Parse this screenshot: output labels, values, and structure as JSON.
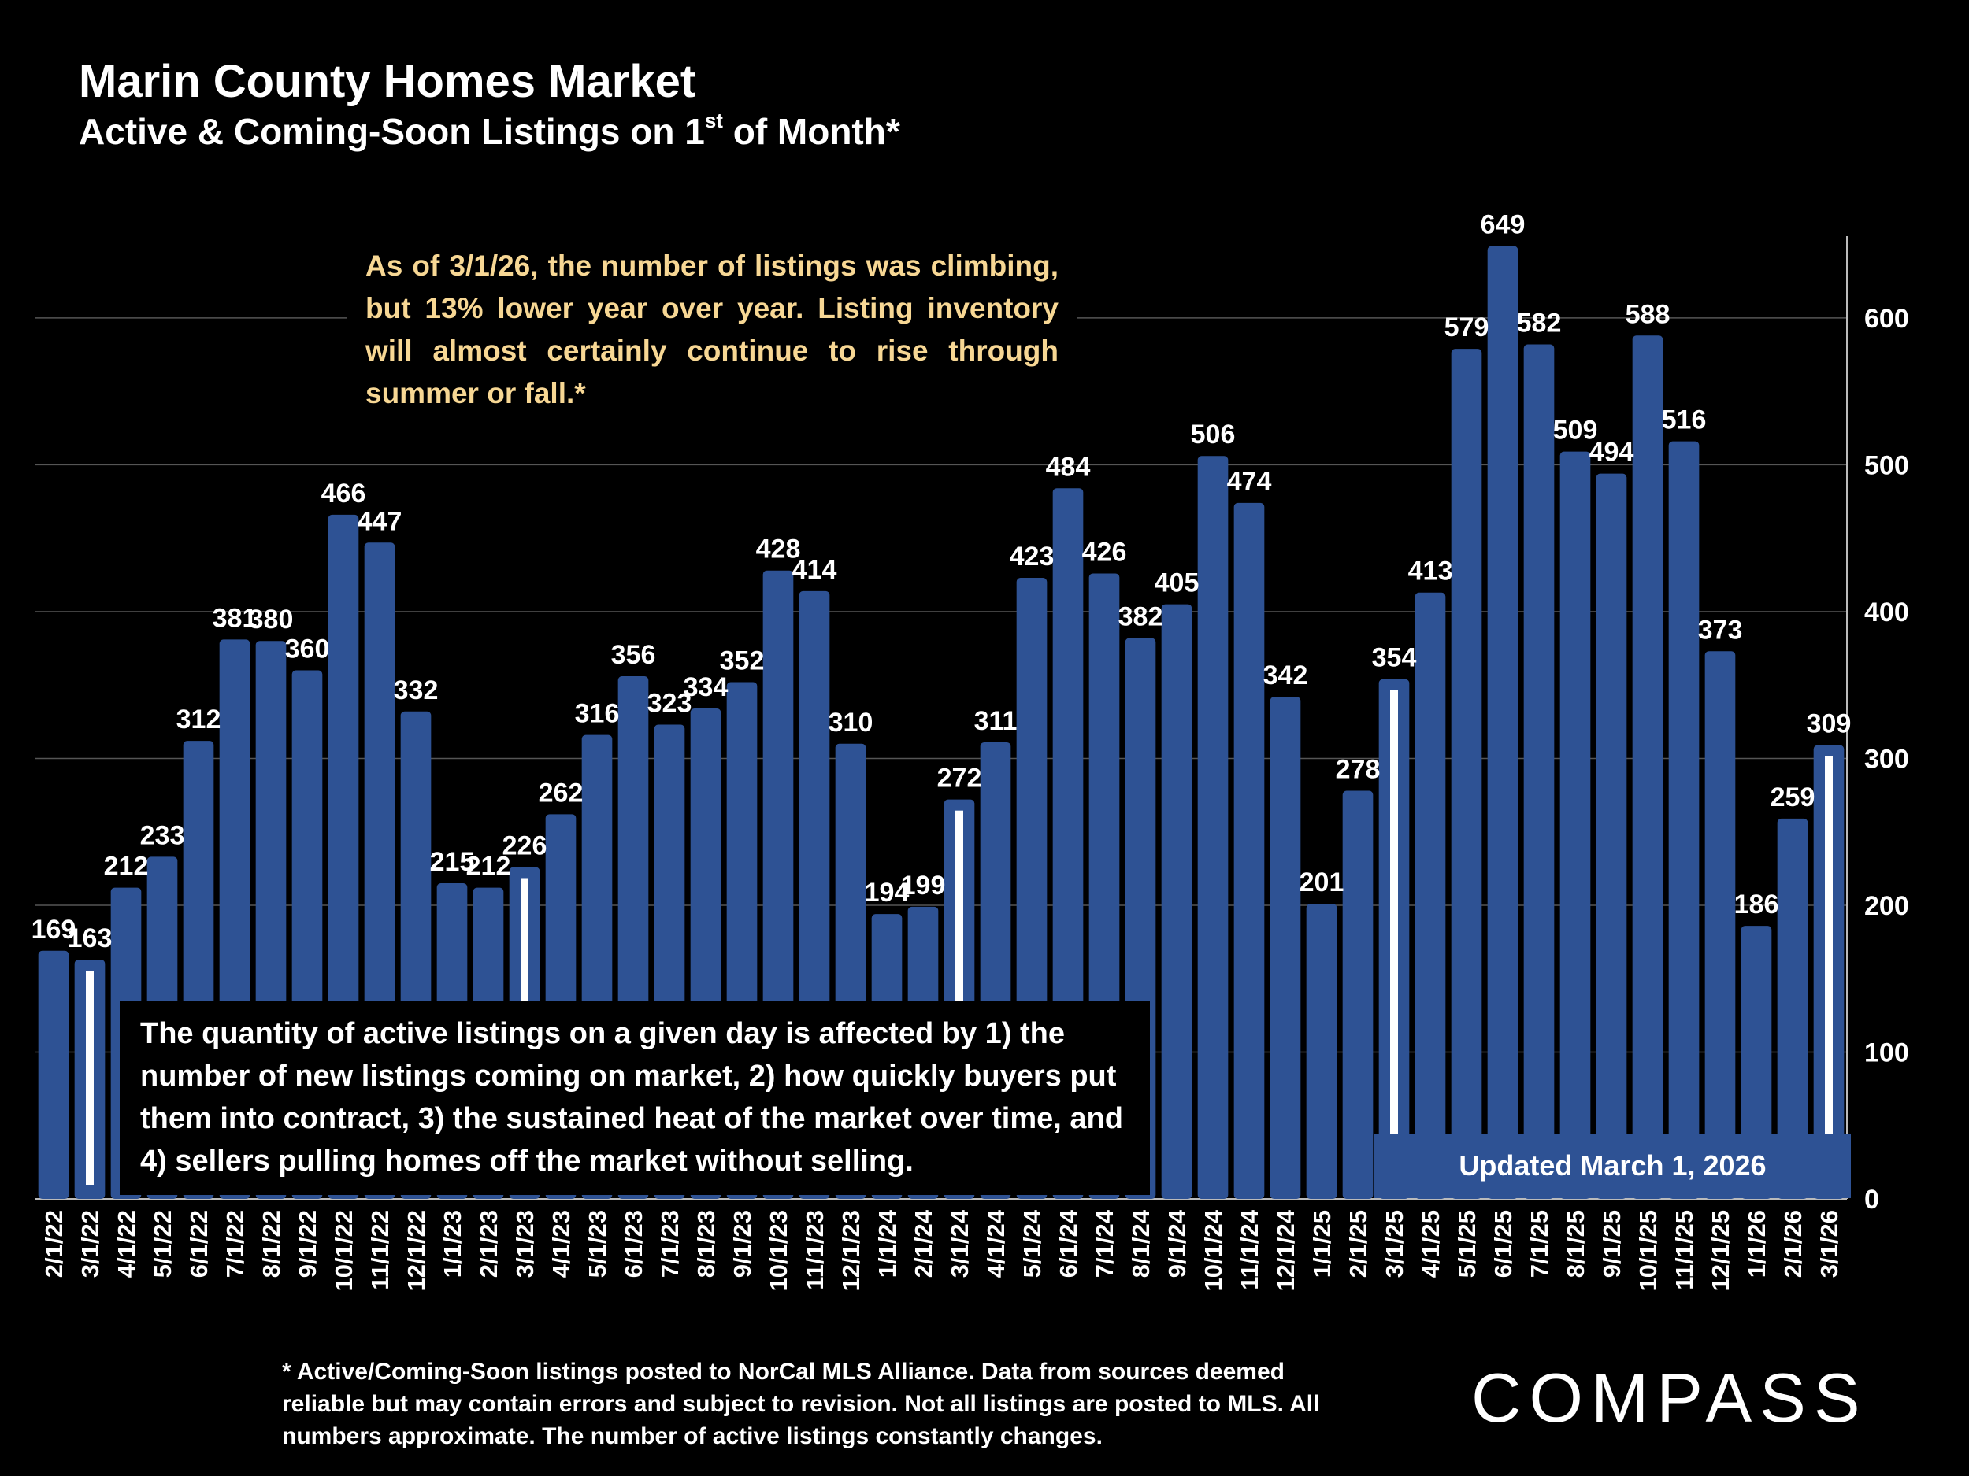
{
  "title": "Marin County Homes Market",
  "subtitle": "Active & Coming-Soon Listings on 1",
  "subtitle_sup": "st",
  "subtitle_end": " of Month*",
  "note_top": "As of 3/1/26, the number of listings was climbing, but 13% lower year over year. Listing inventory will almost certainly continue to rise through summer or fall.*",
  "note_bottom": "The quantity of active listings on a given day is affected by 1) the number of new listings coming on market, 2) how quickly buyers put them into contract, 3) the sustained heat of the market over time, and 4) sellers pulling homes off the market without selling.",
  "updated": "Updated March 1, 2026",
  "footnote": "* Active/Coming-Soon listings posted to NorCal MLS Alliance.  Data from sources deemed reliable but may contain errors and subject to revision.  Not all listings are posted to MLS. All numbers approximate. The number of active listings constantly changes.",
  "logo": "COMPASS",
  "colors": {
    "bar": "#2e5294",
    "background": "#000000",
    "note_text": "#f7d794",
    "marker": "#ffffff"
  },
  "chart_data": {
    "type": "bar",
    "title": "Marin County Homes Market",
    "subtitle": "Active & Coming-Soon Listings on 1st of Month*",
    "xlabel": "",
    "ylabel": "",
    "ylim": [
      0,
      660
    ],
    "yticks": [
      0,
      100,
      200,
      300,
      400,
      500,
      600
    ],
    "y_axis_position": "right",
    "grid": true,
    "categories": [
      "2/1/22",
      "3/1/22",
      "4/1/22",
      "5/1/22",
      "6/1/22",
      "7/1/22",
      "8/1/22",
      "9/1/22",
      "10/1/22",
      "11/1/22",
      "12/1/22",
      "1/1/23",
      "2/1/23",
      "3/1/23",
      "4/1/23",
      "5/1/23",
      "6/1/23",
      "7/1/23",
      "8/1/23",
      "9/1/23",
      "10/1/23",
      "11/1/23",
      "12/1/23",
      "1/1/24",
      "2/1/24",
      "3/1/24",
      "4/1/24",
      "5/1/24",
      "6/1/24",
      "7/1/24",
      "8/1/24",
      "9/1/24",
      "10/1/24",
      "11/1/24",
      "12/1/24",
      "1/1/25",
      "2/1/25",
      "3/1/25",
      "4/1/25",
      "5/1/25",
      "6/1/25",
      "7/1/25",
      "8/1/25",
      "9/1/25",
      "10/1/25",
      "11/1/25",
      "12/1/25",
      "1/1/26",
      "2/1/26",
      "3/1/26"
    ],
    "values": [
      169,
      163,
      212,
      233,
      312,
      381,
      380,
      360,
      466,
      447,
      332,
      215,
      212,
      226,
      262,
      316,
      356,
      323,
      334,
      352,
      428,
      414,
      310,
      194,
      199,
      272,
      311,
      423,
      484,
      426,
      382,
      405,
      506,
      474,
      342,
      201,
      278,
      354,
      413,
      579,
      649,
      582,
      509,
      494,
      588,
      516,
      373,
      186,
      259,
      309
    ],
    "highlighted_months": [
      "3/1/22",
      "3/1/23",
      "3/1/24",
      "3/1/25",
      "3/1/26"
    ]
  }
}
